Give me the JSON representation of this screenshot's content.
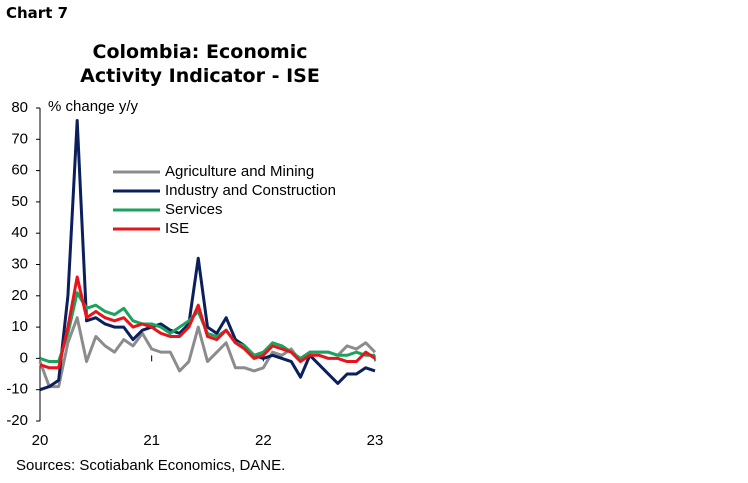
{
  "chart_data": {
    "type": "line",
    "chart_label": "Chart 7",
    "title": "Colombia: Economic Activity Indicator - ISE",
    "y_label": "% change y/y",
    "source": "Sources: Scotiabank Economics, DANE.",
    "x": [
      20,
      20.083,
      20.167,
      20.25,
      20.333,
      20.417,
      20.5,
      20.583,
      20.667,
      20.75,
      20.833,
      20.917,
      21,
      21.083,
      21.167,
      21.25,
      21.333,
      21.417,
      21.5,
      21.583,
      21.667,
      21.75,
      21.833,
      21.917,
      22,
      22.083,
      22.167,
      22.25,
      22.333,
      22.417,
      22.5,
      22.583,
      22.667,
      22.75,
      22.833,
      22.917,
      23
    ],
    "xlim": [
      20,
      23
    ],
    "xticks": [
      20,
      21,
      22,
      23
    ],
    "ylim": [
      -20,
      80
    ],
    "yticks": [
      -20,
      -10,
      0,
      10,
      20,
      30,
      40,
      50,
      60,
      70,
      80
    ],
    "series": [
      {
        "name": "Agriculture and Mining",
        "color": "#8c8c8c",
        "values": [
          -1,
          -9,
          -9,
          5,
          13,
          -1,
          7,
          4,
          2,
          6,
          4,
          8,
          3,
          2,
          2,
          -4,
          -1,
          10,
          -1,
          2,
          5,
          -3,
          -3,
          -4,
          -3,
          2,
          1,
          3,
          -1,
          2,
          2,
          2,
          1,
          4,
          3,
          5,
          2
        ]
      },
      {
        "name": "Industry and Construction",
        "color": "#0a1f5c",
        "values": [
          -10,
          -9,
          -7,
          20,
          76,
          12,
          13,
          11,
          10,
          10,
          6,
          9,
          10,
          11,
          9,
          8,
          11,
          32,
          10,
          8,
          13,
          6,
          4,
          1,
          0,
          1,
          0,
          -1,
          -6,
          1,
          -2,
          -5,
          -8,
          -5,
          -5,
          -3,
          -4
        ]
      },
      {
        "name": "Services",
        "color": "#1aa35c",
        "values": [
          0,
          -1,
          -1,
          8,
          21,
          16,
          17,
          15,
          14,
          16,
          12,
          11,
          11,
          10,
          8,
          10,
          12,
          15,
          8,
          7,
          9,
          5,
          4,
          1,
          2,
          5,
          4,
          2,
          0,
          2,
          2,
          2,
          1,
          1,
          2,
          1,
          1
        ]
      },
      {
        "name": "ISE",
        "color": "#e8141c",
        "values": [
          -2,
          -3,
          -3,
          10,
          26,
          13,
          15,
          13,
          12,
          13,
          10,
          11,
          10,
          8,
          7,
          7,
          10,
          17,
          7,
          6,
          9,
          5,
          3,
          0,
          1,
          4,
          3,
          2,
          -1,
          1,
          1,
          0,
          0,
          -1,
          -1,
          2,
          0
        ]
      }
    ]
  }
}
